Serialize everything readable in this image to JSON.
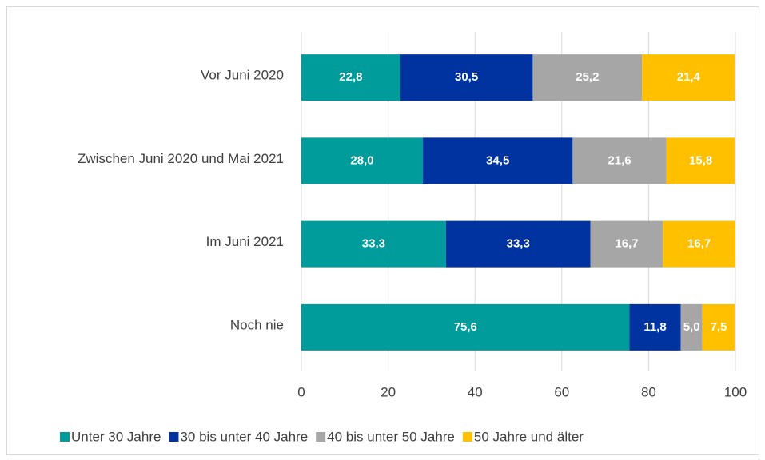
{
  "chart_data": {
    "type": "bar",
    "orientation": "horizontal",
    "stacked": true,
    "categories": [
      "Vor Juni 2020",
      "Zwischen Juni 2020 und Mai 2021",
      "Im Juni 2021",
      "Noch nie"
    ],
    "series": [
      {
        "name": "Unter 30 Jahre",
        "color": "#009B9B",
        "values": [
          22.8,
          28.0,
          33.3,
          75.6
        ],
        "value_labels": [
          "22,8",
          "28,0",
          "33,3",
          "75,6"
        ]
      },
      {
        "name": "30 bis unter 40 Jahre",
        "color": "#0033A0",
        "values": [
          30.5,
          34.5,
          33.3,
          11.8
        ],
        "value_labels": [
          "30,5",
          "34,5",
          "33,3",
          "11,8"
        ]
      },
      {
        "name": "40 bis unter 50 Jahre",
        "color": "#A6A6A6",
        "values": [
          25.2,
          21.6,
          16.7,
          5.0
        ],
        "value_labels": [
          "25,2",
          "21,6",
          "16,7",
          "5,0"
        ]
      },
      {
        "name": "50 Jahre und älter",
        "color": "#FFC000",
        "values": [
          21.4,
          15.8,
          16.7,
          7.5
        ],
        "value_labels": [
          "21,4",
          "15,8",
          "16,7",
          "7,5"
        ]
      }
    ],
    "xlim": [
      0,
      100
    ],
    "xticks": [
      0,
      20,
      40,
      60,
      80,
      100
    ],
    "grid": true,
    "legend": "bottom"
  }
}
